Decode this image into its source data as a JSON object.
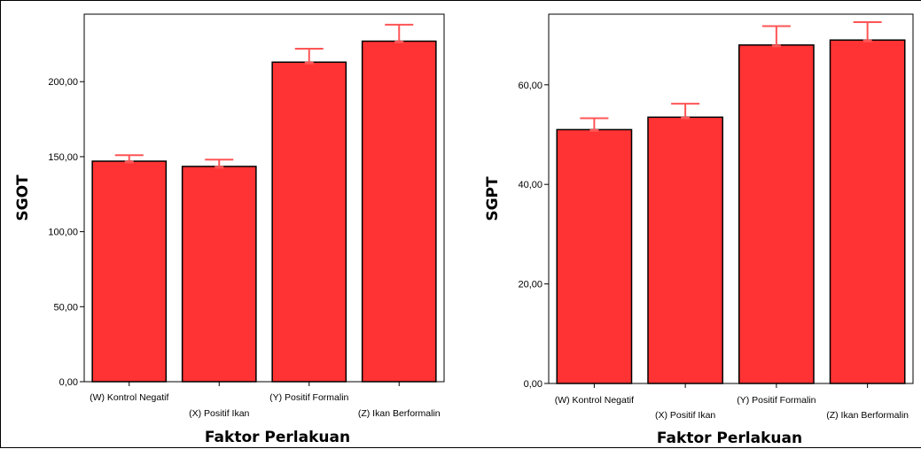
{
  "chart_data": [
    {
      "type": "bar",
      "title": "",
      "xlabel": "Faktor Perlakuan",
      "ylabel": "SGOT",
      "categories": [
        "(W) Kontrol Negatif",
        "(X) Positif Ikan",
        "(Y) Positif Formalin",
        "(Z) Ikan Berformalin"
      ],
      "values": [
        147,
        143.5,
        213,
        227
      ],
      "error_upper": [
        151,
        148,
        222,
        238
      ],
      "yticks": [
        "0,00",
        "50,00",
        "100,00",
        "150,00",
        "200,00"
      ],
      "ytick_values": [
        0,
        50,
        100,
        150,
        200
      ],
      "ylim": [
        0,
        245
      ],
      "grid": false,
      "colors": {
        "bar": "#ff3333",
        "error": "#ff5555",
        "edge": "#000000"
      }
    },
    {
      "type": "bar",
      "title": "",
      "xlabel": "Faktor Perlakuan",
      "ylabel": "SGPT",
      "categories": [
        "(W) Kontrol Negatif",
        "(X) Positif Ikan",
        "(Y) Positif Formalin",
        "(Z) Ikan Berformalin"
      ],
      "values": [
        51,
        53.5,
        68,
        69
      ],
      "error_upper": [
        53.3,
        56.2,
        71.8,
        72.6
      ],
      "yticks": [
        "0,00",
        "20,00",
        "40,00",
        "60,00"
      ],
      "ytick_values": [
        0,
        20,
        40,
        60
      ],
      "ylim": [
        0,
        74.2
      ],
      "grid": false,
      "colors": {
        "bar": "#ff3333",
        "error": "#ff5555",
        "edge": "#000000"
      }
    }
  ]
}
